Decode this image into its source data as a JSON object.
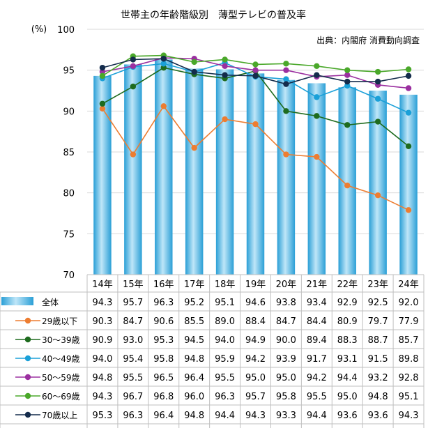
{
  "chart_data": {
    "type": "bar+line",
    "title": "世帯主の年齢階級別　薄型テレビの普及率",
    "source": "出典：内閣府 消費動向調査",
    "ylabel": "(%)",
    "ylim": [
      70,
      100
    ],
    "yticks": [
      "70",
      "75",
      "80",
      "85",
      "90",
      "95",
      "100"
    ],
    "categories": [
      "14年",
      "15年",
      "16年",
      "17年",
      "18年",
      "19年",
      "20年",
      "21年",
      "22年",
      "23年",
      "24年"
    ],
    "bar_series": {
      "name": "全体",
      "color": "#3aaee0",
      "values": [
        94.3,
        95.7,
        96.3,
        95.2,
        95.1,
        94.6,
        93.8,
        93.4,
        92.9,
        92.5,
        92.0
      ],
      "labels": [
        "94.3",
        "95.7",
        "96.3",
        "95.2",
        "95.1",
        "94.6",
        "93.8",
        "93.4",
        "92.9",
        "92.5",
        "92.0"
      ]
    },
    "line_series": [
      {
        "name": "29歳以下",
        "color": "#ed7d31",
        "values": [
          90.3,
          84.7,
          90.6,
          85.5,
          89.0,
          88.4,
          84.7,
          84.4,
          80.9,
          79.7,
          77.9
        ],
        "labels": [
          "90.3",
          "84.7",
          "90.6",
          "85.5",
          "89.0",
          "88.4",
          "84.7",
          "84.4",
          "80.9",
          "79.7",
          "77.9"
        ]
      },
      {
        "name": "30～39歳",
        "color": "#1e6b1e",
        "values": [
          90.9,
          93.0,
          95.3,
          94.5,
          94.0,
          94.9,
          90.0,
          89.4,
          88.3,
          88.7,
          85.7
        ],
        "labels": [
          "90.9",
          "93.0",
          "95.3",
          "94.5",
          "94.0",
          "94.9",
          "90.0",
          "89.4",
          "88.3",
          "88.7",
          "85.7"
        ]
      },
      {
        "name": "40～49歳",
        "color": "#1aa0d8",
        "values": [
          94.0,
          95.4,
          95.8,
          94.8,
          95.9,
          94.2,
          93.9,
          91.7,
          93.1,
          91.5,
          89.8
        ],
        "labels": [
          "94.0",
          "95.4",
          "95.8",
          "94.8",
          "95.9",
          "94.2",
          "93.9",
          "91.7",
          "93.1",
          "91.5",
          "89.8"
        ]
      },
      {
        "name": "50～59歳",
        "color": "#9b30a0",
        "values": [
          94.8,
          95.5,
          96.5,
          96.4,
          95.5,
          95.0,
          95.0,
          94.2,
          94.4,
          93.2,
          92.8
        ],
        "labels": [
          "94.8",
          "95.5",
          "96.5",
          "96.4",
          "95.5",
          "95.0",
          "95.0",
          "94.2",
          "94.4",
          "93.2",
          "92.8"
        ]
      },
      {
        "name": "60～69歳",
        "color": "#4aa82a",
        "values": [
          94.3,
          96.7,
          96.8,
          96.0,
          96.3,
          95.7,
          95.8,
          95.5,
          95.0,
          94.8,
          95.1
        ],
        "labels": [
          "94.3",
          "96.7",
          "96.8",
          "96.0",
          "96.3",
          "95.7",
          "95.8",
          "95.5",
          "95.0",
          "94.8",
          "95.1"
        ]
      },
      {
        "name": "70歳以上",
        "color": "#142c4c",
        "values": [
          95.3,
          96.3,
          96.4,
          94.8,
          94.4,
          94.3,
          93.3,
          94.4,
          93.6,
          93.6,
          94.3
        ],
        "labels": [
          "95.3",
          "96.3",
          "96.4",
          "94.8",
          "94.4",
          "94.3",
          "93.3",
          "94.4",
          "93.6",
          "93.6",
          "94.3"
        ]
      }
    ],
    "grid": true,
    "legend": "data-table"
  }
}
